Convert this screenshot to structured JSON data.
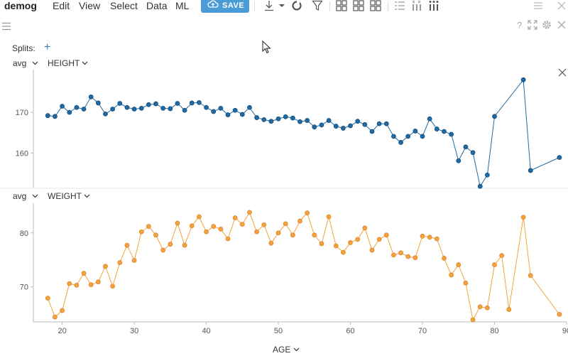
{
  "menu": {
    "title": "demog",
    "items": [
      "Edit",
      "View",
      "Select",
      "Data",
      "ML"
    ],
    "save_label": "SAVE"
  },
  "splits_label": "Splits:",
  "colors": {
    "accent": "#4b9bd6",
    "height_series": "#1f6aa5",
    "weight_series": "#f5a23d"
  },
  "top_panel": {
    "aggregation": "avg",
    "column": "HEIGHT"
  },
  "bottom_panel": {
    "aggregation": "avg",
    "column": "WEIGHT"
  },
  "x_axis_column": "AGE",
  "chart_data": [
    {
      "type": "line",
      "ylabel": "HEIGHT",
      "yticks": [
        160,
        170
      ],
      "ylim": [
        151.5,
        180.5
      ],
      "xlim": [
        16,
        90
      ],
      "series": [
        {
          "color": "#1f6aa5",
          "points": [
            [
              18,
              169.2
            ],
            [
              19,
              169.0
            ],
            [
              20,
              171.5
            ],
            [
              21,
              170.0
            ],
            [
              22,
              171.2
            ],
            [
              23,
              170.8
            ],
            [
              24,
              173.8
            ],
            [
              25,
              172.3
            ],
            [
              26,
              169.6
            ],
            [
              27,
              170.8
            ],
            [
              28,
              172.2
            ],
            [
              29,
              171.2
            ],
            [
              30,
              170.8
            ],
            [
              31,
              171.0
            ],
            [
              32,
              171.9
            ],
            [
              33,
              172.1
            ],
            [
              34,
              171.0
            ],
            [
              35,
              170.9
            ],
            [
              36,
              172.2
            ],
            [
              37,
              170.5
            ],
            [
              38,
              172.3
            ],
            [
              39,
              172.4
            ],
            [
              40,
              171.2
            ],
            [
              41,
              170.2
            ],
            [
              42,
              171.0
            ],
            [
              43,
              169.4
            ],
            [
              44,
              170.5
            ],
            [
              45,
              169.5
            ],
            [
              46,
              171.2
            ],
            [
              47,
              168.7
            ],
            [
              48,
              168.2
            ],
            [
              49,
              167.8
            ],
            [
              50,
              168.4
            ],
            [
              51,
              168.9
            ],
            [
              52,
              168.6
            ],
            [
              53,
              167.7
            ],
            [
              54,
              168.0
            ],
            [
              55,
              166.4
            ],
            [
              56,
              166.9
            ],
            [
              57,
              168.0
            ],
            [
              58,
              166.6
            ],
            [
              59,
              166.1
            ],
            [
              60,
              166.7
            ],
            [
              61,
              167.8
            ],
            [
              62,
              167.0
            ],
            [
              63,
              165.3
            ],
            [
              64,
              167.2
            ],
            [
              65,
              167.2
            ],
            [
              66,
              164.1
            ],
            [
              67,
              162.6
            ],
            [
              68,
              164.1
            ],
            [
              69,
              165.4
            ],
            [
              70,
              164.1
            ],
            [
              71,
              168.4
            ],
            [
              72,
              165.9
            ],
            [
              73,
              165.3
            ],
            [
              74,
              164.6
            ],
            [
              75,
              158.1
            ],
            [
              76,
              161.5
            ],
            [
              77,
              160.1
            ],
            [
              78,
              151.8
            ],
            [
              79,
              154.6
            ],
            [
              80,
              169.0
            ],
            [
              84,
              178.0
            ],
            [
              85,
              155.7
            ],
            [
              89,
              158.9
            ]
          ]
        }
      ]
    },
    {
      "type": "line",
      "ylabel": "WEIGHT",
      "xlabel": "AGE",
      "xticks": [
        20,
        30,
        40,
        50,
        60,
        70,
        80,
        90
      ],
      "yticks": [
        70,
        80
      ],
      "ylim": [
        63.5,
        85.5
      ],
      "xlim": [
        16,
        90
      ],
      "series": [
        {
          "color": "#f5a23d",
          "points": [
            [
              18,
              67.9
            ],
            [
              19,
              64.4
            ],
            [
              20,
              65.6
            ],
            [
              21,
              70.6
            ],
            [
              22,
              70.3
            ],
            [
              23,
              72.5
            ],
            [
              24,
              70.4
            ],
            [
              25,
              70.9
            ],
            [
              26,
              73.8
            ],
            [
              27,
              70.1
            ],
            [
              28,
              74.5
            ],
            [
              29,
              77.7
            ],
            [
              30,
              74.9
            ],
            [
              31,
              80.2
            ],
            [
              32,
              81.2
            ],
            [
              33,
              79.6
            ],
            [
              34,
              76.8
            ],
            [
              35,
              77.9
            ],
            [
              36,
              81.8
            ],
            [
              37,
              77.7
            ],
            [
              38,
              81.3
            ],
            [
              39,
              83.0
            ],
            [
              40,
              80.2
            ],
            [
              41,
              81.2
            ],
            [
              42,
              80.7
            ],
            [
              43,
              78.9
            ],
            [
              44,
              82.8
            ],
            [
              45,
              81.6
            ],
            [
              46,
              83.8
            ],
            [
              47,
              80.2
            ],
            [
              48,
              81.5
            ],
            [
              49,
              78.1
            ],
            [
              50,
              80.0
            ],
            [
              51,
              81.7
            ],
            [
              52,
              79.6
            ],
            [
              53,
              82.2
            ],
            [
              54,
              83.7
            ],
            [
              55,
              79.6
            ],
            [
              56,
              78.0
            ],
            [
              57,
              83.0
            ],
            [
              58,
              77.6
            ],
            [
              59,
              76.4
            ],
            [
              60,
              78.2
            ],
            [
              61,
              78.8
            ],
            [
              62,
              80.9
            ],
            [
              63,
              76.8
            ],
            [
              64,
              78.8
            ],
            [
              65,
              79.6
            ],
            [
              66,
              75.9
            ],
            [
              67,
              76.3
            ],
            [
              68,
              75.6
            ],
            [
              69,
              75.4
            ],
            [
              70,
              79.4
            ],
            [
              71,
              79.2
            ],
            [
              72,
              78.9
            ],
            [
              73,
              75.3
            ],
            [
              74,
              72.2
            ],
            [
              75,
              74.1
            ],
            [
              76,
              70.7
            ],
            [
              77,
              63.9
            ],
            [
              78,
              66.3
            ],
            [
              79,
              66.1
            ],
            [
              80,
              74.1
            ],
            [
              81,
              75.8
            ],
            [
              82,
              65.8
            ],
            [
              84,
              82.9
            ],
            [
              85,
              72.1
            ],
            [
              89,
              64.9
            ]
          ]
        }
      ]
    }
  ]
}
